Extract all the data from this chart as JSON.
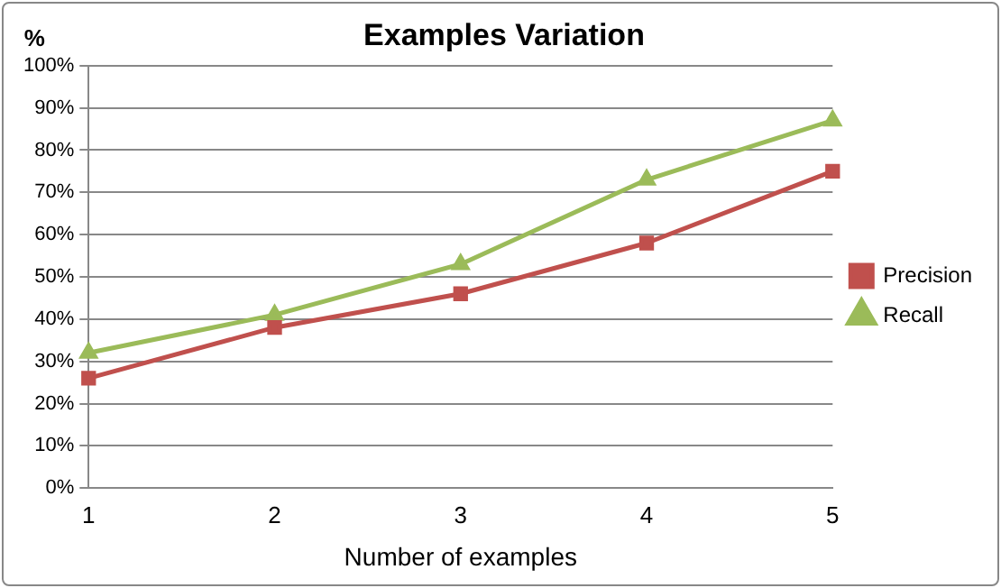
{
  "chart_data": {
    "type": "line",
    "title": "Examples Variation",
    "xlabel": "Number of examples",
    "ylabel": "%",
    "categories": [
      "1",
      "2",
      "3",
      "4",
      "5"
    ],
    "series": [
      {
        "name": "Precision",
        "color": "#c0504d",
        "marker": "square",
        "values": [
          26,
          38,
          46,
          58,
          75
        ]
      },
      {
        "name": "Recall",
        "color": "#9bbb59",
        "marker": "triangle",
        "values": [
          32,
          41,
          53,
          73,
          87
        ]
      }
    ],
    "ylim": [
      0,
      100
    ],
    "yticks": [
      {
        "value": 0,
        "label": "0%"
      },
      {
        "value": 10,
        "label": "10%"
      },
      {
        "value": 20,
        "label": "20%"
      },
      {
        "value": 30,
        "label": "30%"
      },
      {
        "value": 40,
        "label": "40%"
      },
      {
        "value": 50,
        "label": "50%"
      },
      {
        "value": 60,
        "label": "60%"
      },
      {
        "value": 70,
        "label": "70%"
      },
      {
        "value": 80,
        "label": "80%"
      },
      {
        "value": 90,
        "label": "90%"
      },
      {
        "value": 100,
        "label": "100%"
      }
    ],
    "grid": "y",
    "legend": "right",
    "line_style": "solid"
  }
}
